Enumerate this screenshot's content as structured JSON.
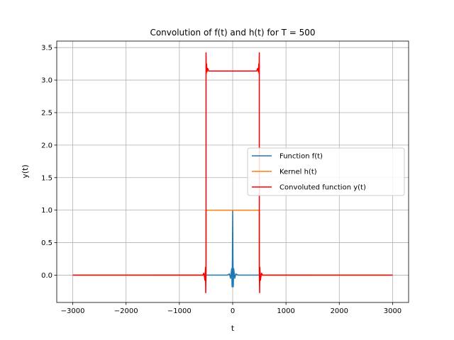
{
  "chart_data": {
    "type": "line",
    "title": "Convolution of f(t) and h(t) for T = 500",
    "xlabel": "t",
    "ylabel": "y(t)",
    "xlim": [
      -3300,
      3300
    ],
    "ylim": [
      -0.42,
      3.6
    ],
    "xticks": [
      -3000,
      -2000,
      -1000,
      0,
      1000,
      2000,
      3000
    ],
    "xtick_labels": [
      "−3000",
      "−2000",
      "−1000",
      "0",
      "1000",
      "2000",
      "3000"
    ],
    "yticks": [
      0.0,
      0.5,
      1.0,
      1.5,
      2.0,
      2.5,
      3.0,
      3.5
    ],
    "ytick_labels": [
      "0.0",
      "0.5",
      "1.0",
      "1.5",
      "2.0",
      "2.5",
      "3.0",
      "3.5"
    ],
    "grid": true,
    "legend_position": "center-right",
    "series": [
      {
        "name": "Function f(t)",
        "color": "#1f77b4",
        "x": [
          -1500,
          -100,
          -60,
          -40,
          -20,
          -10,
          -5,
          0,
          5,
          10,
          20,
          40,
          60,
          100,
          1500
        ],
        "y": [
          0,
          0,
          0.02,
          -0.05,
          0.1,
          -0.18,
          0.3,
          1.0,
          0.3,
          -0.18,
          0.1,
          -0.05,
          0.02,
          0,
          0
        ]
      },
      {
        "name": "Kernel h(t)",
        "color": "#ff7f0e",
        "x": [
          -3000,
          -500,
          -500,
          500,
          500,
          3000
        ],
        "y": [
          0,
          0,
          1,
          1,
          0,
          0
        ]
      },
      {
        "name": "Convoluted function y(t)",
        "color": "#ff0000",
        "x": [
          -3000,
          -560,
          -540,
          -520,
          -510,
          -505,
          -500,
          -500,
          -495,
          -490,
          -480,
          -470,
          -450,
          -400,
          0,
          400,
          450,
          470,
          480,
          490,
          495,
          500,
          500,
          505,
          510,
          520,
          540,
          560,
          3000
        ],
        "y": [
          0,
          0,
          0.03,
          -0.08,
          0.12,
          -0.27,
          0,
          3.42,
          3.1,
          3.25,
          3.13,
          3.18,
          3.14,
          3.14,
          3.14,
          3.14,
          3.14,
          3.18,
          3.13,
          3.25,
          3.1,
          3.42,
          0,
          -0.27,
          0.12,
          -0.08,
          0.03,
          0,
          0
        ]
      }
    ]
  }
}
